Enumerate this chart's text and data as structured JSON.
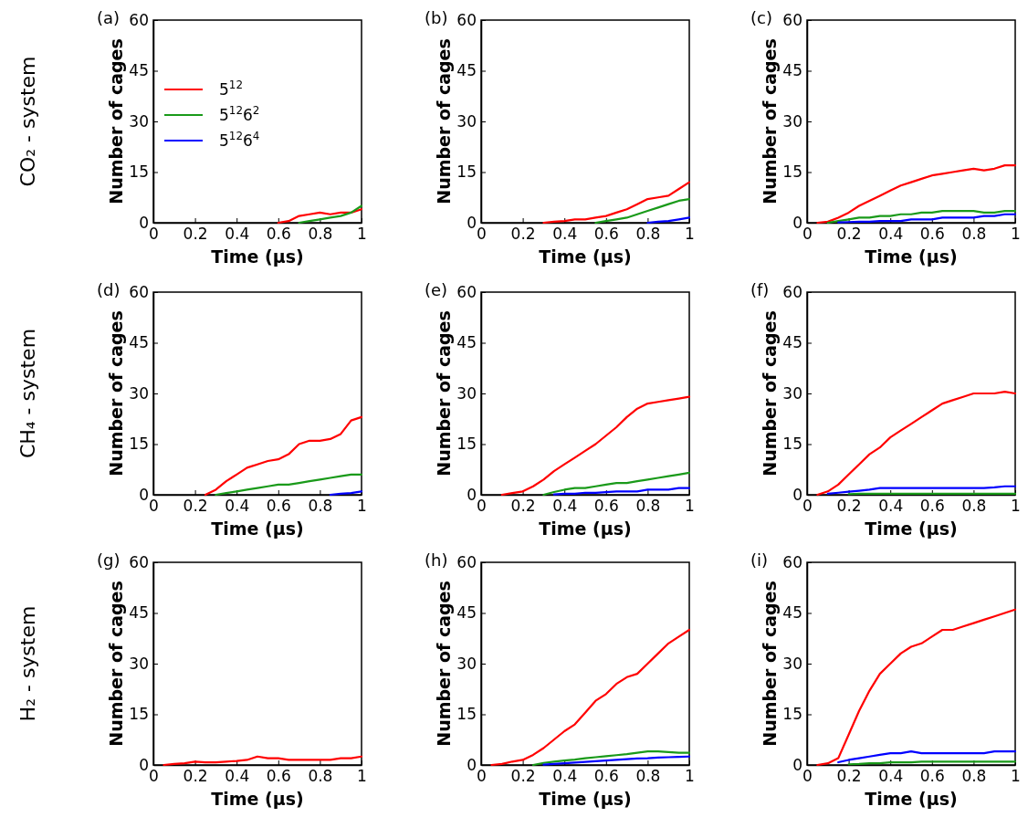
{
  "chart_data": [
    {
      "type": "line",
      "title": "(a)",
      "xlabel": "Time (μs)",
      "ylabel": "Number of cages",
      "annotations": [
        "CO₂ - system"
      ],
      "legend": "left",
      "xlim": [
        0,
        1
      ],
      "ylim": [
        0,
        60
      ],
      "xticks": [
        0,
        0.2,
        0.4,
        0.6,
        0.8,
        1
      ],
      "yticks": [
        0,
        15,
        30,
        45,
        60
      ],
      "series": [
        {
          "name": "5$^{12}$",
          "color": "#ff0000",
          "x": [
            0.6,
            0.65,
            0.7,
            0.75,
            0.8,
            0.85,
            0.9,
            0.95,
            1
          ],
          "values": [
            0,
            0.5,
            2,
            2.5,
            3,
            2.5,
            3,
            3,
            4
          ]
        },
        {
          "name": "5$^{12}$6$^{2}$",
          "color": "#1a9a1a",
          "x": [
            0.7,
            0.75,
            0.8,
            0.85,
            0.9,
            0.95,
            1
          ],
          "values": [
            0,
            0.5,
            1,
            1.5,
            2,
            3,
            5
          ]
        },
        {
          "name": "5$^{12}$6$^{4}$",
          "color": "#0000ff"
        }
      ]
    },
    {
      "type": "line",
      "title": "(b)",
      "xlabel": "Time (μs)",
      "ylabel": "Number of cages",
      "xlim": [
        0,
        1
      ],
      "ylim": [
        0,
        60
      ],
      "xticks": [
        0,
        0.2,
        0.4,
        0.6,
        0.8,
        1
      ],
      "yticks": [
        0,
        15,
        30,
        45,
        60
      ],
      "series": [
        {
          "color": "#ff0000",
          "x": [
            0.3,
            0.35,
            0.4,
            0.45,
            0.5,
            0.55,
            0.6,
            0.65,
            0.7,
            0.75,
            0.8,
            0.85,
            0.9,
            0.95,
            1
          ],
          "values": [
            0,
            0.3,
            0.5,
            1,
            1,
            1.5,
            2,
            3,
            4,
            5.5,
            7,
            7.5,
            8,
            10,
            12
          ]
        },
        {
          "color": "#1a9a1a",
          "x": [
            0.55,
            0.6,
            0.65,
            0.7,
            0.75,
            0.8,
            0.85,
            0.9,
            0.95,
            1
          ],
          "values": [
            0,
            0.5,
            1,
            1.5,
            2.5,
            3.5,
            4.5,
            5.5,
            6.5,
            7
          ]
        },
        {
          "color": "#0000ff",
          "x": [
            0.8,
            0.85,
            0.9,
            0.95,
            1
          ],
          "values": [
            0,
            0.3,
            0.5,
            1,
            1.5
          ]
        }
      ]
    },
    {
      "type": "line",
      "title": "(c)",
      "xlabel": "Time (μs)",
      "ylabel": "Number of cages",
      "xlim": [
        0,
        1
      ],
      "ylim": [
        0,
        60
      ],
      "xticks": [
        0,
        0.2,
        0.4,
        0.6,
        0.8,
        1
      ],
      "yticks": [
        0,
        15,
        30,
        45,
        60
      ],
      "series": [
        {
          "color": "#ff0000",
          "x": [
            0.05,
            0.1,
            0.15,
            0.2,
            0.25,
            0.3,
            0.35,
            0.4,
            0.45,
            0.5,
            0.55,
            0.6,
            0.65,
            0.7,
            0.75,
            0.8,
            0.85,
            0.9,
            0.95,
            1
          ],
          "values": [
            0,
            0.3,
            1.5,
            3,
            5,
            6.5,
            8,
            9.5,
            11,
            12,
            13,
            14,
            14.5,
            15,
            15.5,
            16,
            15.5,
            16,
            17,
            17
          ]
        },
        {
          "color": "#1a9a1a",
          "x": [
            0.1,
            0.15,
            0.2,
            0.25,
            0.3,
            0.35,
            0.4,
            0.45,
            0.5,
            0.55,
            0.6,
            0.65,
            0.7,
            0.75,
            0.8,
            0.85,
            0.9,
            0.95,
            1
          ],
          "values": [
            0,
            0.5,
            1,
            1.5,
            1.5,
            2,
            2,
            2.5,
            2.5,
            3,
            3,
            3.5,
            3.5,
            3.5,
            3.5,
            3,
            3,
            3.5,
            3.5
          ]
        },
        {
          "color": "#0000ff",
          "x": [
            0.15,
            0.2,
            0.25,
            0.3,
            0.35,
            0.4,
            0.45,
            0.5,
            0.55,
            0.6,
            0.65,
            0.7,
            0.75,
            0.8,
            0.85,
            0.9,
            0.95,
            1
          ],
          "values": [
            0.1,
            0.2,
            0.3,
            0.3,
            0.5,
            0.5,
            0.5,
            1,
            1,
            1,
            1.5,
            1.5,
            1.5,
            1.5,
            2,
            2,
            2.5,
            2.5
          ]
        }
      ]
    },
    {
      "type": "line",
      "title": "(d)",
      "xlabel": "Time (μs)",
      "ylabel": "Number of cages",
      "annotations": [
        "CH₄ - system"
      ],
      "xlim": [
        0,
        1
      ],
      "ylim": [
        0,
        60
      ],
      "xticks": [
        0,
        0.2,
        0.4,
        0.6,
        0.8,
        1
      ],
      "yticks": [
        0,
        15,
        30,
        45,
        60
      ],
      "series": [
        {
          "color": "#ff0000",
          "x": [
            0.25,
            0.3,
            0.35,
            0.4,
            0.45,
            0.5,
            0.55,
            0.6,
            0.65,
            0.7,
            0.75,
            0.8,
            0.85,
            0.9,
            0.95,
            1
          ],
          "values": [
            0,
            1.5,
            4,
            6,
            8,
            9,
            10,
            10.5,
            12,
            15,
            16,
            16,
            16.5,
            18,
            22,
            23
          ]
        },
        {
          "color": "#1a9a1a",
          "x": [
            0.3,
            0.35,
            0.4,
            0.45,
            0.5,
            0.55,
            0.6,
            0.65,
            0.7,
            0.75,
            0.8,
            0.85,
            0.9,
            0.95,
            1
          ],
          "values": [
            0,
            0.5,
            1,
            1.5,
            2,
            2.5,
            3,
            3,
            3.5,
            4,
            4.5,
            5,
            5.5,
            6,
            6
          ]
        },
        {
          "color": "#0000ff",
          "x": [
            0.85,
            0.9,
            0.95,
            1
          ],
          "values": [
            0,
            0.3,
            0.5,
            1
          ]
        }
      ]
    },
    {
      "type": "line",
      "title": "(e)",
      "xlabel": "Time (μs)",
      "ylabel": "Number of cages",
      "xlim": [
        0,
        1
      ],
      "ylim": [
        0,
        60
      ],
      "xticks": [
        0,
        0.2,
        0.4,
        0.6,
        0.8,
        1
      ],
      "yticks": [
        0,
        15,
        30,
        45,
        60
      ],
      "series": [
        {
          "color": "#ff0000",
          "x": [
            0.1,
            0.15,
            0.2,
            0.25,
            0.3,
            0.35,
            0.4,
            0.45,
            0.5,
            0.55,
            0.6,
            0.65,
            0.7,
            0.75,
            0.8,
            0.85,
            0.9,
            0.95,
            1
          ],
          "values": [
            0,
            0.5,
            1,
            2.5,
            4.5,
            7,
            9,
            11,
            13,
            15,
            17.5,
            20,
            23,
            25.5,
            27,
            27.5,
            28,
            28.5,
            29
          ]
        },
        {
          "color": "#1a9a1a",
          "x": [
            0.3,
            0.35,
            0.4,
            0.45,
            0.5,
            0.55,
            0.6,
            0.65,
            0.7,
            0.75,
            0.8,
            0.85,
            0.9,
            0.95,
            1
          ],
          "values": [
            0,
            0.8,
            1.5,
            2,
            2,
            2.5,
            3,
            3.5,
            3.5,
            4,
            4.5,
            5,
            5.5,
            6,
            6.5
          ]
        },
        {
          "color": "#0000ff",
          "x": [
            0.35,
            0.4,
            0.45,
            0.5,
            0.55,
            0.6,
            0.65,
            0.7,
            0.75,
            0.8,
            0.85,
            0.9,
            0.95,
            1
          ],
          "values": [
            0.1,
            0.3,
            0.3,
            0.6,
            0.6,
            0.8,
            1,
            1,
            1,
            1.5,
            1.5,
            1.5,
            2,
            2
          ]
        }
      ]
    },
    {
      "type": "line",
      "title": "(f)",
      "xlabel": "Time (μs)",
      "ylabel": "Number of cages",
      "xlim": [
        0,
        1
      ],
      "ylim": [
        0,
        60
      ],
      "xticks": [
        0,
        0.2,
        0.4,
        0.6,
        0.8,
        1
      ],
      "yticks": [
        0,
        15,
        30,
        45,
        60
      ],
      "series": [
        {
          "color": "#ff0000",
          "x": [
            0.05,
            0.1,
            0.15,
            0.2,
            0.25,
            0.3,
            0.35,
            0.4,
            0.45,
            0.5,
            0.55,
            0.6,
            0.65,
            0.7,
            0.75,
            0.8,
            0.85,
            0.9,
            0.95,
            1
          ],
          "values": [
            0,
            1,
            3,
            6,
            9,
            12,
            14,
            17,
            19,
            21,
            23,
            25,
            27,
            28,
            29,
            30,
            30,
            30,
            30.5,
            30
          ]
        },
        {
          "color": "#1a9a1a",
          "x": [
            0.2,
            0.25,
            0.3,
            0.35,
            0.4,
            0.45,
            0.5,
            0.55,
            0.6,
            0.65,
            0.7,
            0.75,
            0.8,
            0.85,
            0.9,
            0.95,
            1
          ],
          "values": [
            0.2,
            0.3,
            0.3,
            0.3,
            0.3,
            0.3,
            0.3,
            0.3,
            0.3,
            0.3,
            0.3,
            0.3,
            0.3,
            0.3,
            0.3,
            0.3,
            0.3
          ]
        },
        {
          "color": "#0000ff",
          "x": [
            0.1,
            0.15,
            0.2,
            0.25,
            0.3,
            0.35,
            0.4,
            0.45,
            0.5,
            0.55,
            0.6,
            0.65,
            0.7,
            0.75,
            0.8,
            0.85,
            0.9,
            0.95,
            1
          ],
          "values": [
            0.3,
            0.6,
            0.9,
            1.2,
            1.5,
            2,
            2,
            2,
            2,
            2,
            2,
            2,
            2,
            2,
            2,
            2,
            2.2,
            2.5,
            2.5
          ]
        }
      ]
    },
    {
      "type": "line",
      "title": "(g)",
      "xlabel": "Time (μs)",
      "ylabel": "Number of cages",
      "annotations": [
        "H₂ - system"
      ],
      "xlim": [
        0,
        1
      ],
      "ylim": [
        0,
        60
      ],
      "xticks": [
        0,
        0.2,
        0.4,
        0.6,
        0.8,
        1
      ],
      "yticks": [
        0,
        15,
        30,
        45,
        60
      ],
      "series": [
        {
          "color": "#ff0000",
          "x": [
            0.05,
            0.1,
            0.15,
            0.2,
            0.25,
            0.3,
            0.35,
            0.4,
            0.45,
            0.5,
            0.55,
            0.6,
            0.65,
            0.7,
            0.75,
            0.8,
            0.85,
            0.9,
            0.95,
            1
          ],
          "values": [
            0,
            0.3,
            0.5,
            1,
            0.8,
            0.8,
            1,
            1.2,
            1.5,
            2.5,
            2,
            2,
            1.5,
            1.5,
            1.5,
            1.5,
            1.5,
            2,
            2,
            2.5
          ]
        }
      ]
    },
    {
      "type": "line",
      "title": "(h)",
      "xlabel": "Time (μs)",
      "ylabel": "Number of cages",
      "xlim": [
        0,
        1
      ],
      "ylim": [
        0,
        60
      ],
      "xticks": [
        0,
        0.2,
        0.4,
        0.6,
        0.8,
        1
      ],
      "yticks": [
        0,
        15,
        30,
        45,
        60
      ],
      "series": [
        {
          "color": "#ff0000",
          "x": [
            0.05,
            0.1,
            0.15,
            0.2,
            0.25,
            0.3,
            0.35,
            0.4,
            0.45,
            0.5,
            0.55,
            0.6,
            0.65,
            0.7,
            0.75,
            0.8,
            0.85,
            0.9,
            0.95,
            1
          ],
          "values": [
            0,
            0.3,
            1,
            1.5,
            3,
            5,
            7.5,
            10,
            12,
            15.5,
            19,
            21,
            24,
            26,
            27,
            30,
            33,
            36,
            38,
            40
          ]
        },
        {
          "color": "#1a9a1a",
          "x": [
            0.25,
            0.3,
            0.35,
            0.4,
            0.45,
            0.5,
            0.55,
            0.6,
            0.65,
            0.7,
            0.75,
            0.8,
            0.85,
            0.9,
            0.95,
            1
          ],
          "values": [
            0,
            0.6,
            1,
            1.3,
            1.6,
            2,
            2.3,
            2.6,
            2.9,
            3.2,
            3.6,
            4,
            4,
            3.8,
            3.6,
            3.6
          ]
        },
        {
          "color": "#0000ff",
          "x": [
            0.3,
            0.35,
            0.4,
            0.45,
            0.5,
            0.55,
            0.6,
            0.65,
            0.7,
            0.75,
            0.8,
            0.85,
            0.9,
            0.95,
            1
          ],
          "values": [
            0.1,
            0.3,
            0.5,
            0.7,
            0.9,
            1.1,
            1.3,
            1.5,
            1.7,
            1.9,
            2,
            2.2,
            2.3,
            2.4,
            2.5
          ]
        }
      ]
    },
    {
      "type": "line",
      "title": "(i)",
      "xlabel": "Time (μs)",
      "ylabel": "Number of cages",
      "xlim": [
        0,
        1
      ],
      "ylim": [
        0,
        60
      ],
      "xticks": [
        0,
        0.2,
        0.4,
        0.6,
        0.8,
        1
      ],
      "yticks": [
        0,
        15,
        30,
        45,
        60
      ],
      "series": [
        {
          "color": "#ff0000",
          "x": [
            0.05,
            0.1,
            0.15,
            0.2,
            0.25,
            0.3,
            0.35,
            0.4,
            0.45,
            0.5,
            0.55,
            0.6,
            0.65,
            0.7,
            0.75,
            0.8,
            0.85,
            0.9,
            0.95,
            1
          ],
          "values": [
            0,
            0.5,
            2,
            9,
            16,
            22,
            27,
            30,
            33,
            35,
            36,
            38,
            40,
            40,
            41,
            42,
            43,
            44,
            45,
            46
          ]
        },
        {
          "color": "#1a9a1a",
          "x": [
            0.2,
            0.25,
            0.3,
            0.35,
            0.4,
            0.45,
            0.5,
            0.55,
            0.6,
            0.65,
            0.7,
            0.75,
            0.8,
            0.85,
            0.9,
            0.95,
            1
          ],
          "values": [
            0.2,
            0.3,
            0.5,
            0.5,
            0.8,
            0.8,
            0.8,
            1,
            1,
            1,
            1,
            1,
            1,
            1,
            1,
            1,
            1
          ]
        },
        {
          "color": "#0000ff",
          "x": [
            0.15,
            0.2,
            0.25,
            0.3,
            0.35,
            0.4,
            0.45,
            0.5,
            0.55,
            0.6,
            0.65,
            0.7,
            0.75,
            0.8,
            0.85,
            0.9,
            0.95,
            1
          ],
          "values": [
            0.8,
            1.5,
            2,
            2.5,
            3,
            3.5,
            3.5,
            4,
            3.5,
            3.5,
            3.5,
            3.5,
            3.5,
            3.5,
            3.5,
            4,
            4,
            4
          ]
        }
      ]
    }
  ]
}
